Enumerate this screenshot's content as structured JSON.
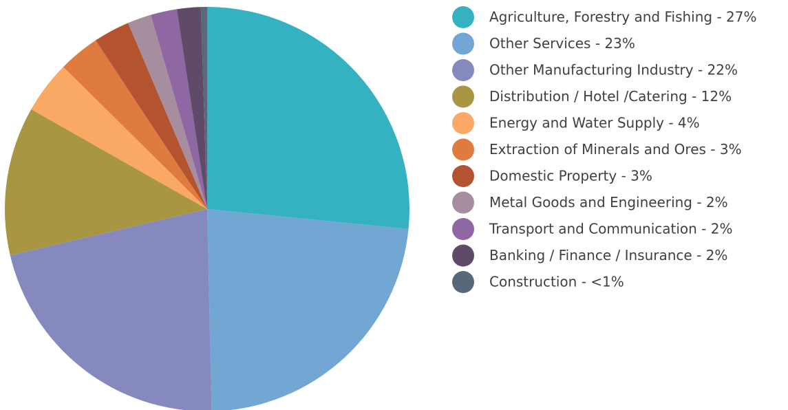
{
  "chart_data": {
    "type": "pie",
    "categories": [
      "Agriculture, Forestry and Fishing - 27%",
      "Other Services - 23%",
      "Other Manufacturing Industry - 22%",
      "Distribution / Hotel /Catering - 12%",
      "Energy and Water Supply - 4%",
      "Extraction of Minerals and Ores - 3%",
      "Domestic Property - 3%",
      "Metal Goods and Engineering - 2%",
      "Transport and Communication - 2%",
      "Banking / Finance / Insurance - 2%",
      "Construction - <1%"
    ],
    "values": [
      26.6,
      23.1,
      21.7,
      11.9,
      4.2,
      3.3,
      2.9,
      1.9,
      2.1,
      1.9,
      0.5
    ],
    "colors": [
      "#35b2c2",
      "#72a7d4",
      "#8589bd",
      "#a89642",
      "#f9a963",
      "#e07b40",
      "#b45330",
      "#a78e9e",
      "#8f67a3",
      "#5f4b67",
      "#56687a"
    ],
    "legend": "right"
  }
}
